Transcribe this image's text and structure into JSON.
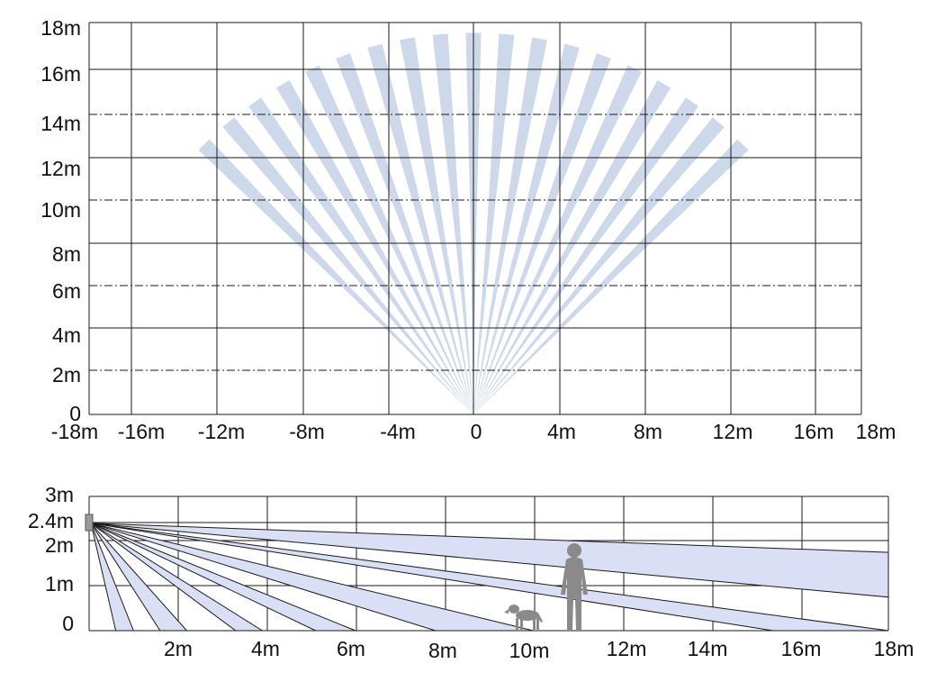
{
  "colors": {
    "beam": "#cdd8ea",
    "side_beam": "#d9dff4",
    "grid": "#1a1a1a",
    "figure": "#8a8a8a",
    "sensor": "#9a9a9a"
  },
  "top_view": {
    "y_labels": [
      "18m",
      "16m",
      "14m",
      "12m",
      "10m",
      "8m",
      "6m",
      "4m",
      "2m",
      "0"
    ],
    "x_labels": [
      "-18m",
      "-16m",
      "-12m",
      "-8m",
      "-4m",
      "0",
      "4m",
      "8m",
      "12m",
      "16m",
      "18m"
    ],
    "dashdot_levels_m": [
      2,
      6,
      10,
      14
    ],
    "beam_angles_deg": [
      -45,
      -40,
      -35,
      -30,
      -25,
      -20,
      -15,
      -10,
      -5,
      0,
      5,
      10,
      15,
      20,
      25,
      30,
      35,
      40,
      45
    ],
    "beam_range_m": 17.5
  },
  "side_view": {
    "y_labels": [
      "3m",
      "2.4m",
      "2m",
      "1m",
      "0"
    ],
    "x_labels": [
      "2m",
      "4m",
      "6m",
      "8m",
      "10m",
      "12m",
      "14m",
      "16m",
      "18m"
    ],
    "mount_height_m": 2.4,
    "ground_beams_m": [
      [
        0.6,
        1.0
      ],
      [
        1.6,
        2.2
      ],
      [
        3.3,
        3.9
      ],
      [
        5.1,
        6.0
      ],
      [
        7.8,
        10.0
      ],
      [
        15.4,
        18.0
      ]
    ],
    "far_beams_m": [
      [
        0.75,
        1.75
      ]
    ],
    "icons": [
      "dog-icon",
      "person-icon"
    ]
  }
}
